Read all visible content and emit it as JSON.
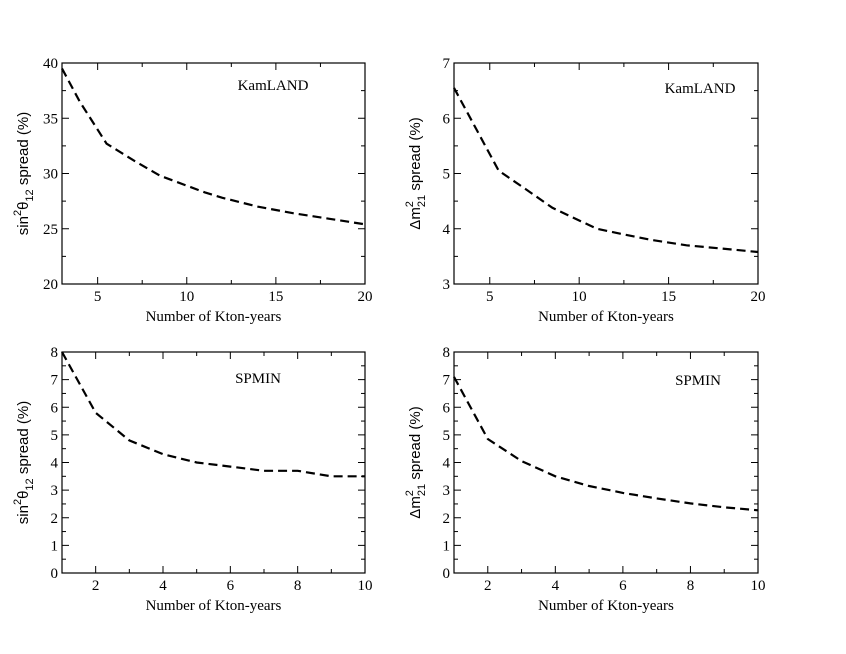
{
  "chart_data": [
    {
      "type": "line",
      "annotation": "KamLAND",
      "xlabel": "Number of Kton-years",
      "ylabel": {
        "pre": "sin",
        "sup": "2",
        "mid": "θ",
        "sub": "12",
        "post": " spread (%)"
      },
      "xlim": [
        3,
        20
      ],
      "ylim": [
        20,
        40
      ],
      "xticks": [
        5,
        10,
        15,
        20
      ],
      "yticks": [
        20,
        25,
        30,
        35,
        40
      ],
      "x": [
        3,
        4,
        5.5,
        7,
        8.5,
        10,
        11,
        12,
        14,
        16,
        18,
        20
      ],
      "y": [
        39.5,
        36.5,
        32.7,
        31.2,
        29.8,
        28.9,
        28.3,
        27.8,
        27.0,
        26.4,
        25.9,
        25.4
      ]
    },
    {
      "type": "line",
      "annotation": "KamLAND",
      "xlabel": "Number of Kton-years",
      "ylabel": {
        "pre": "Δm",
        "sup": "2",
        "mid": "",
        "sub": "21",
        "post": " spread (%)"
      },
      "xlim": [
        3,
        20
      ],
      "ylim": [
        3,
        7
      ],
      "xticks": [
        5,
        10,
        15,
        20
      ],
      "yticks": [
        3,
        4,
        5,
        6,
        7
      ],
      "x": [
        3,
        4,
        5.5,
        7,
        8.5,
        10,
        11,
        12,
        14,
        16,
        18,
        20
      ],
      "y": [
        6.55,
        5.95,
        5.05,
        4.72,
        4.38,
        4.15,
        4.0,
        3.93,
        3.8,
        3.7,
        3.64,
        3.58
      ]
    },
    {
      "type": "line",
      "annotation": "SPMIN",
      "xlabel": "Number of Kton-years",
      "ylabel": {
        "pre": "sin",
        "sup": "2",
        "mid": "θ",
        "sub": "12",
        "post": " spread (%)"
      },
      "xlim": [
        1,
        10
      ],
      "ylim": [
        0,
        8
      ],
      "xticks": [
        2,
        4,
        6,
        8,
        10
      ],
      "yticks": [
        0,
        1,
        2,
        3,
        4,
        5,
        6,
        7,
        8
      ],
      "x": [
        1,
        2,
        3,
        4,
        5,
        6,
        7,
        8,
        9,
        10
      ],
      "y": [
        8.0,
        5.8,
        4.8,
        4.3,
        4.0,
        3.85,
        3.7,
        3.7,
        3.5,
        3.5
      ]
    },
    {
      "type": "line",
      "annotation": "SPMIN",
      "xlabel": "Number of Kton-years",
      "ylabel": {
        "pre": "Δm",
        "sup": "2",
        "mid": "",
        "sub": "21",
        "post": " spread (%)"
      },
      "xlim": [
        1,
        10
      ],
      "ylim": [
        0,
        8
      ],
      "xticks": [
        2,
        4,
        6,
        8,
        10
      ],
      "yticks": [
        0,
        1,
        2,
        3,
        4,
        5,
        6,
        7,
        8
      ],
      "x": [
        1,
        2,
        3,
        4,
        5,
        6,
        7,
        8,
        9,
        10
      ],
      "y": [
        7.1,
        4.85,
        4.05,
        3.5,
        3.15,
        2.9,
        2.7,
        2.52,
        2.38,
        2.27
      ]
    }
  ]
}
